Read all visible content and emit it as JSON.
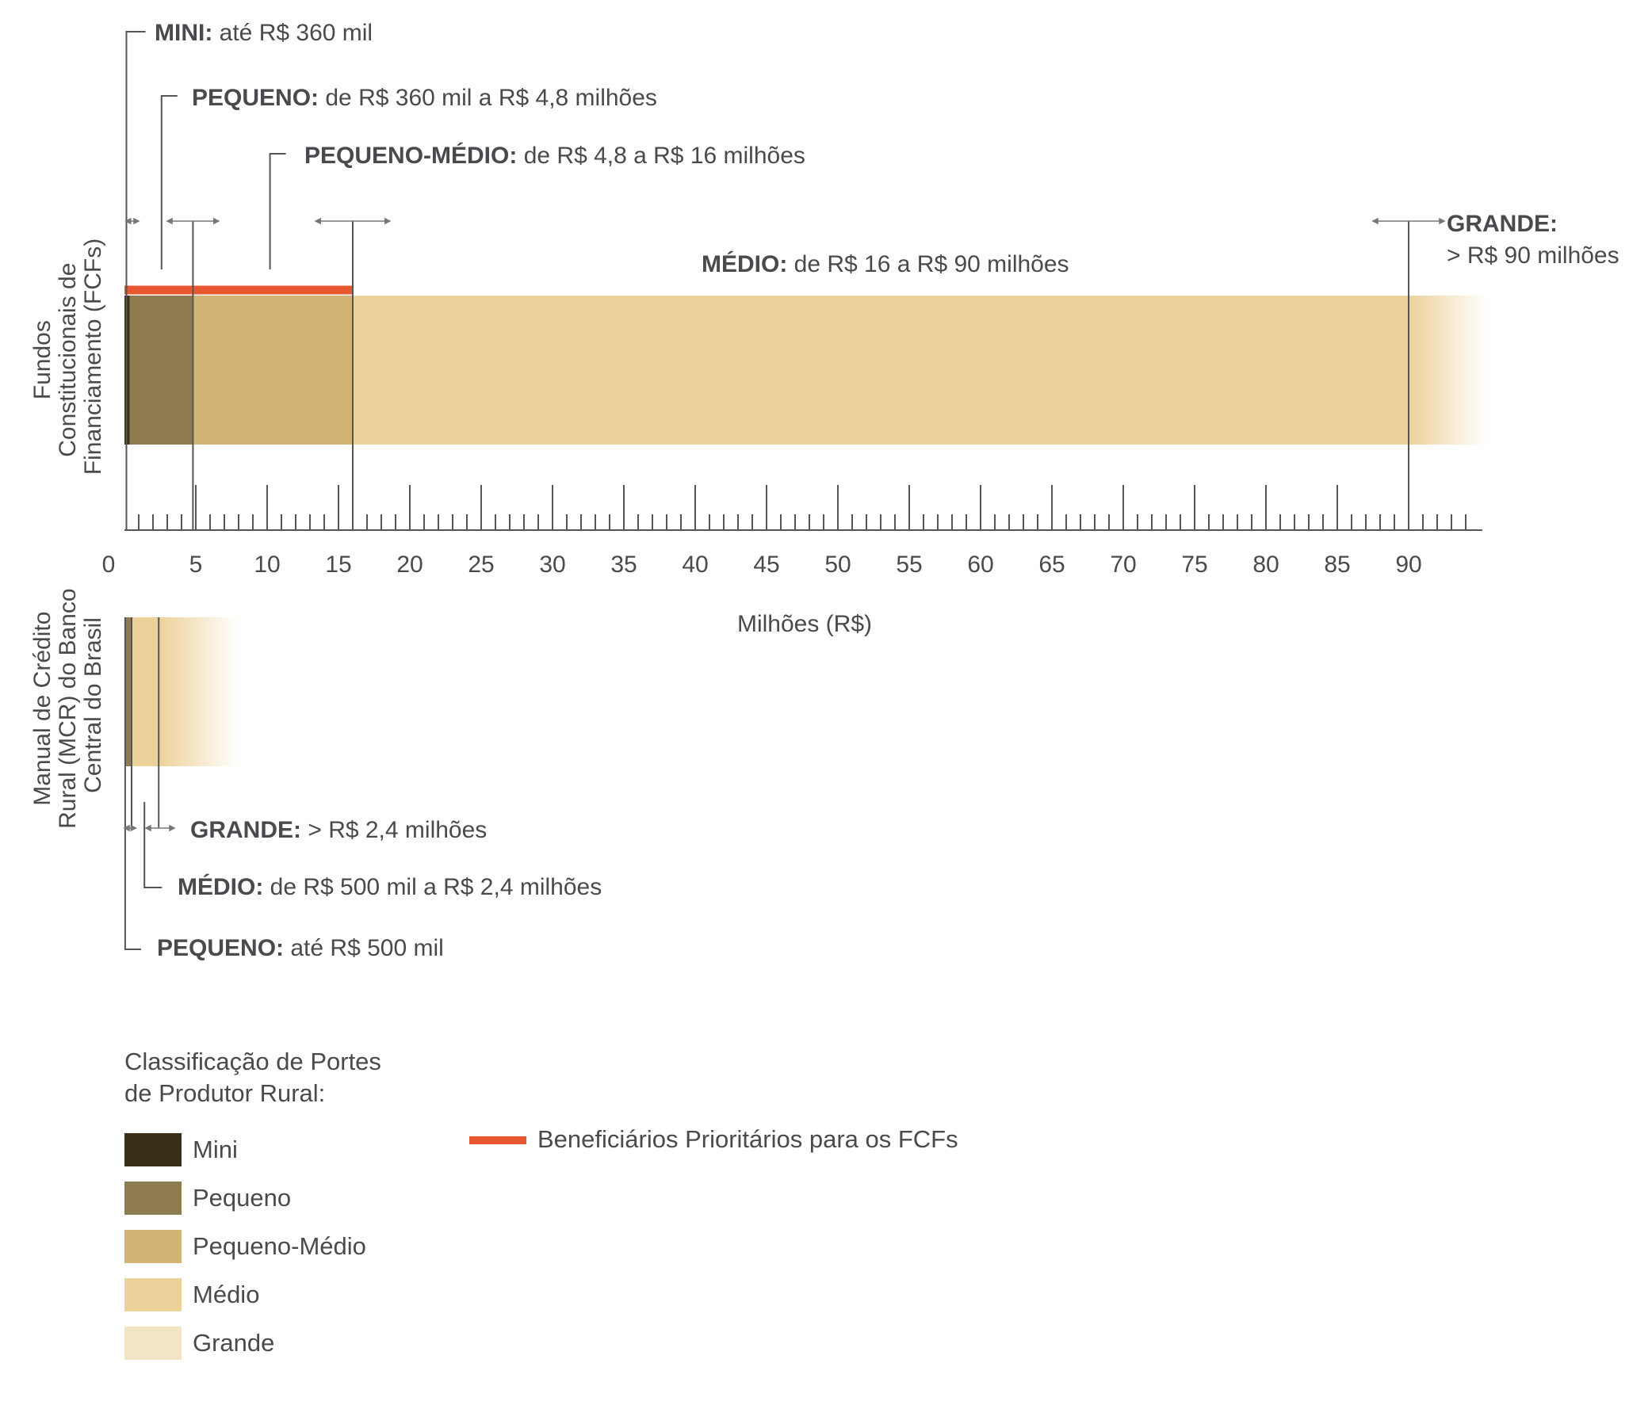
{
  "colors": {
    "mini": "#3a301a",
    "pequeno": "#8e7b50",
    "pequeno_medio": "#d2b475",
    "medio": "#edd19a",
    "grande": "#f3e4c4",
    "prioritarios": "#e8572f",
    "line": "#555555"
  },
  "chart_data": {
    "type": "bar",
    "xlabel": "Milhões (R$)",
    "xlim": [
      0,
      94
    ],
    "xticks": [
      0,
      5,
      10,
      15,
      20,
      25,
      30,
      35,
      40,
      45,
      50,
      55,
      60,
      65,
      70,
      75,
      80,
      85,
      90
    ],
    "xtick_labels": [
      "0",
      "5",
      "10",
      "15",
      "20",
      "25",
      "30",
      "35",
      "40",
      "45",
      "50",
      "55",
      "60",
      "65",
      "70",
      "75",
      "80",
      "85",
      "90"
    ],
    "rows": [
      {
        "name": "Fundos Constitucionais de Financiamento (FCFs)",
        "name_lines": [
          "Fundos",
          "Constitucionais de",
          "Financiamento (FCFs)"
        ],
        "segments": [
          {
            "class": "mini",
            "from": 0,
            "to": 0.36
          },
          {
            "class": "pequeno",
            "from": 0.36,
            "to": 4.8
          },
          {
            "class": "pequeno_medio",
            "from": 4.8,
            "to": 16
          },
          {
            "class": "medio",
            "from": 16,
            "to": 90
          },
          {
            "class": "grande",
            "from": 90,
            "to": 95.5,
            "fade": true
          }
        ],
        "priority_range": [
          0,
          16
        ],
        "annotations": [
          {
            "bold": "MINI:",
            "text": " até R$ 360 mil"
          },
          {
            "bold": "PEQUENO:",
            "text": " de R$ 360 mil a R$ 4,8 milhões"
          },
          {
            "bold": "PEQUENO-MÉDIO:",
            "text": " de R$ 4,8 a R$ 16 milhões"
          },
          {
            "bold": "MÉDIO:",
            "text": " de R$ 16 a R$ 90 milhões"
          },
          {
            "bold": "GRANDE:",
            "text": "> R$ 90 milhões"
          }
        ]
      },
      {
        "name": "Manual de Crédito Rural (MCR) do Banco Central do Brasil",
        "name_lines": [
          "Manual de Crédito",
          "Rural (MCR) do Banco",
          "Central do Brasil"
        ],
        "segments": [
          {
            "class": "pequeno",
            "from": 0,
            "to": 0.5
          },
          {
            "class": "medio",
            "from": 0.5,
            "to": 2.4
          },
          {
            "class": "grande",
            "from": 2.4,
            "to": 8,
            "fade": true
          }
        ],
        "annotations": [
          {
            "bold": "GRANDE:",
            "text": " > R$ 2,4 milhões"
          },
          {
            "bold": "MÉDIO:",
            "text": " de R$ 500 mil a R$ 2,4 milhões"
          },
          {
            "bold": "PEQUENO:",
            "text": " até R$ 500 mil"
          }
        ]
      }
    ]
  },
  "legend": {
    "title_lines": [
      "Classificação de Portes",
      "de Produtor Rural:"
    ],
    "items": [
      {
        "label": "Mini",
        "color": "#3a301a"
      },
      {
        "label": "Pequeno",
        "color": "#8e7b50"
      },
      {
        "label": "Pequeno-Médio",
        "color": "#d2b475"
      },
      {
        "label": "Médio",
        "color": "#edd19a"
      },
      {
        "label": "Grande",
        "color": "#f3e4c4"
      }
    ],
    "priority_label": "Beneficiários Prioritários para os FCFs",
    "priority_color": "#e8572f"
  }
}
